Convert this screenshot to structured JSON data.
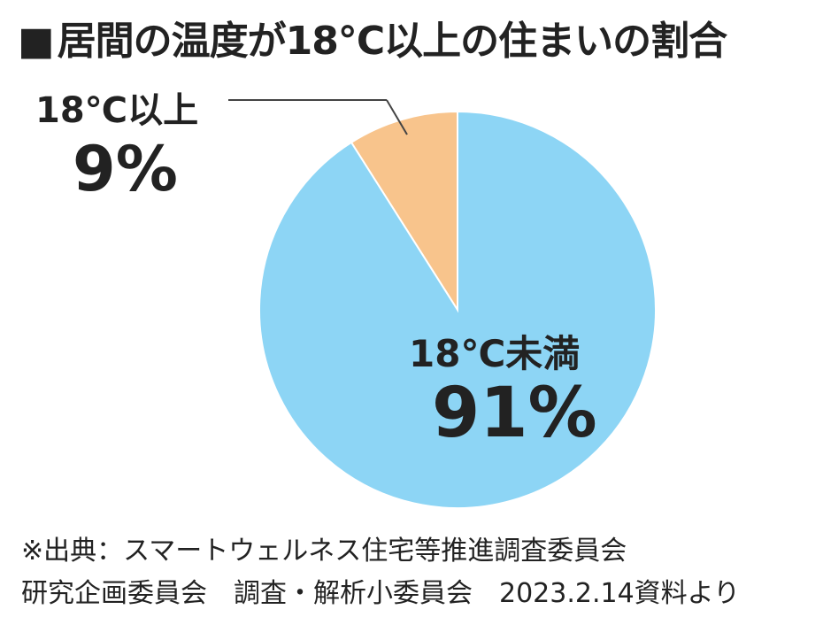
{
  "title": "居間の温度が18℃以上の住まいの割合",
  "title_marker": "■",
  "chart_data": {
    "type": "pie",
    "title": "居間の温度が18℃以上の住まいの割合",
    "slices": [
      {
        "label": "18℃以上",
        "value": 9,
        "value_label": "9%",
        "color": "#f8c48c"
      },
      {
        "label": "18℃未満",
        "value": 91,
        "value_label": "91%",
        "color": "#8dd5f5"
      }
    ]
  },
  "source": {
    "line1": "※出典：スマートウェルネス住宅等推進調査委員会",
    "line2": "研究企画委員会　調査・解析小委員会　2023.2.14資料より"
  }
}
